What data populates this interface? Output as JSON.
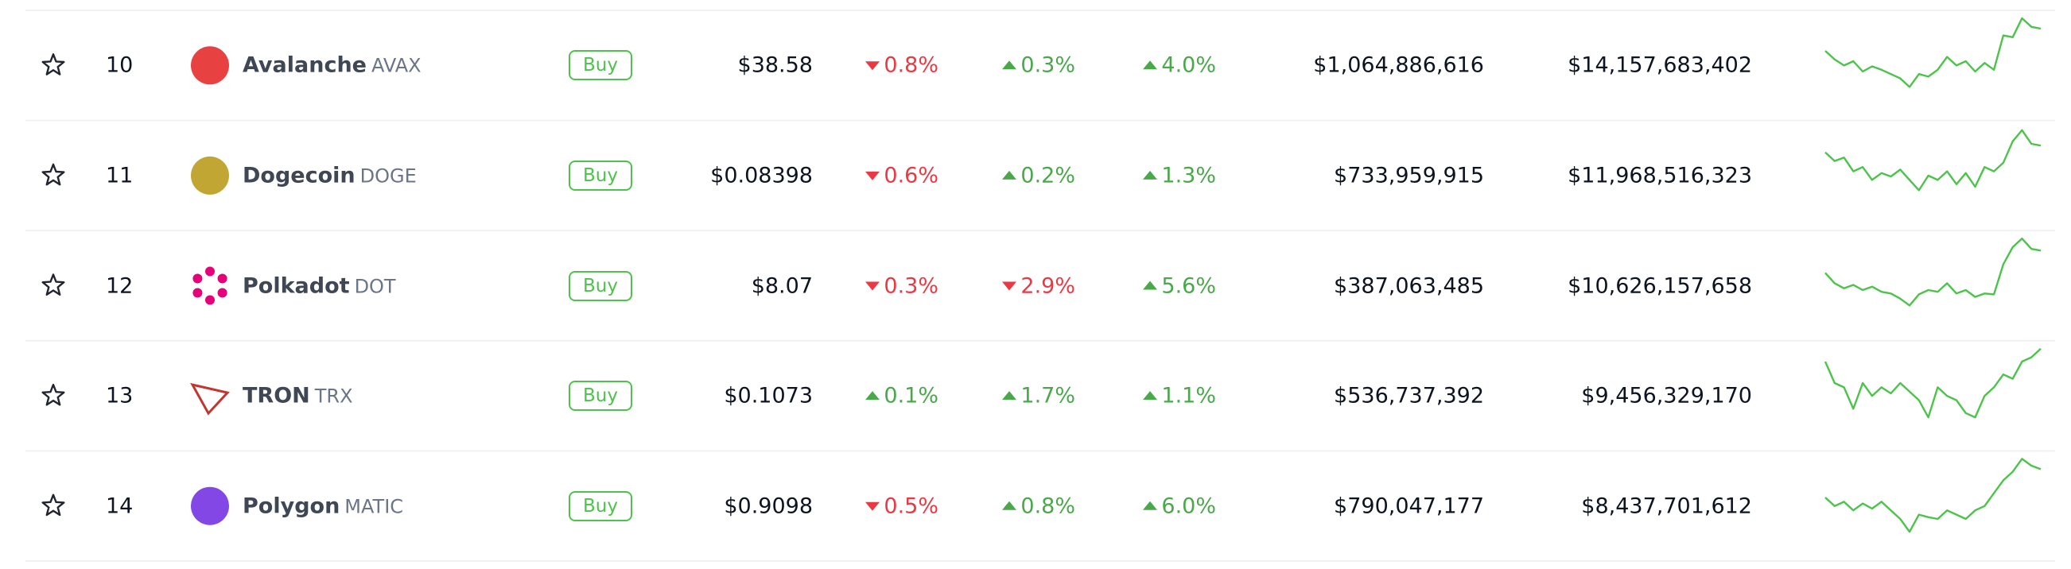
{
  "rows": [
    {
      "rank": "10",
      "name": "Avalanche",
      "symbol": "AVAX",
      "logo_color": "#e84142",
      "buy": "Buy",
      "price": "$38.58",
      "change_1h": {
        "text": "0.8%",
        "direction": "down"
      },
      "change_24h": {
        "text": "0.3%",
        "direction": "up"
      },
      "change_7d": {
        "text": "4.0%",
        "direction": "up"
      },
      "volume": "$1,064,886,616",
      "market_cap": "$14,157,683,402",
      "sparkline": [
        62,
        52,
        45,
        50,
        38,
        44,
        40,
        35,
        30,
        20,
        35,
        32,
        40,
        55,
        45,
        50,
        38,
        48,
        40,
        80,
        78,
        100,
        90,
        88
      ]
    },
    {
      "rank": "11",
      "name": "Dogecoin",
      "symbol": "DOGE",
      "logo_color": "#c2a633",
      "buy": "Buy",
      "price": "$0.08398",
      "change_1h": {
        "text": "0.6%",
        "direction": "down"
      },
      "change_24h": {
        "text": "0.2%",
        "direction": "up"
      },
      "change_7d": {
        "text": "1.3%",
        "direction": "up"
      },
      "volume": "$733,959,915",
      "market_cap": "$11,968,516,323",
      "sparkline": [
        72,
        62,
        66,
        50,
        55,
        40,
        48,
        44,
        52,
        40,
        28,
        45,
        40,
        50,
        35,
        48,
        32,
        55,
        50,
        60,
        85,
        98,
        82,
        80
      ]
    },
    {
      "rank": "12",
      "name": "Polkadot",
      "symbol": "DOT",
      "logo_color": "#e6007a",
      "buy": "Buy",
      "price": "$8.07",
      "change_1h": {
        "text": "0.3%",
        "direction": "down"
      },
      "change_24h": {
        "text": "2.9%",
        "direction": "down"
      },
      "change_7d": {
        "text": "5.6%",
        "direction": "up"
      },
      "volume": "$387,063,485",
      "market_cap": "$10,626,157,658",
      "sparkline": [
        60,
        48,
        42,
        46,
        40,
        44,
        38,
        36,
        30,
        22,
        35,
        40,
        38,
        48,
        36,
        40,
        32,
        36,
        35,
        70,
        90,
        100,
        88,
        86
      ]
    },
    {
      "rank": "13",
      "name": "TRON",
      "symbol": "TRX",
      "logo_color": "#c23631",
      "buy": "Buy",
      "price": "$0.1073",
      "change_1h": {
        "text": "0.1%",
        "direction": "up"
      },
      "change_24h": {
        "text": "1.7%",
        "direction": "up"
      },
      "change_7d": {
        "text": "1.1%",
        "direction": "up"
      },
      "volume": "$536,737,392",
      "market_cap": "$9,456,329,170",
      "sparkline": [
        85,
        60,
        55,
        30,
        60,
        45,
        55,
        48,
        60,
        50,
        40,
        20,
        55,
        45,
        40,
        25,
        20,
        45,
        55,
        70,
        65,
        85,
        90,
        100
      ]
    },
    {
      "rank": "14",
      "name": "Polygon",
      "symbol": "MATIC",
      "logo_color": "#8247e5",
      "buy": "Buy",
      "price": "$0.9098",
      "change_1h": {
        "text": "0.5%",
        "direction": "down"
      },
      "change_24h": {
        "text": "0.8%",
        "direction": "up"
      },
      "change_7d": {
        "text": "6.0%",
        "direction": "up"
      },
      "volume": "$790,047,177",
      "market_cap": "$8,437,701,612",
      "sparkline": [
        55,
        45,
        50,
        40,
        48,
        42,
        50,
        40,
        30,
        15,
        35,
        32,
        30,
        40,
        35,
        30,
        40,
        45,
        60,
        75,
        85,
        100,
        92,
        88
      ]
    }
  ]
}
